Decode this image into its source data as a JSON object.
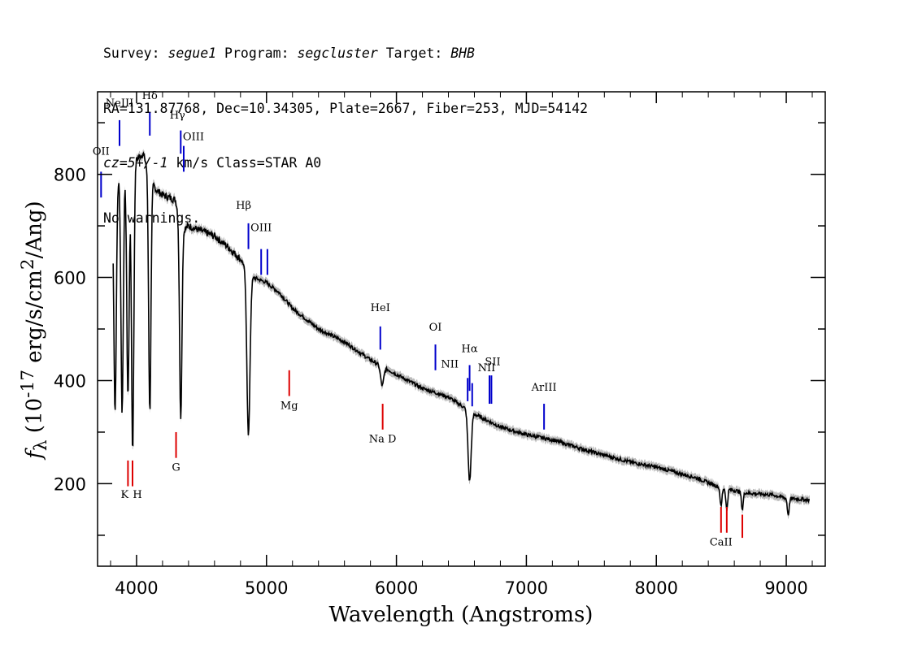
{
  "header": {
    "line1": {
      "survey_label": "Survey: ",
      "survey": "segue1",
      "program_label": " Program: ",
      "program": "segcluster",
      "target_label": " Target: ",
      "target": "BHB"
    },
    "line2": "RA=131.87768, Dec=10.34305, Plate=2667, Fiber=253, MJD=54142",
    "line3": {
      "cz": "cz=5+/-1",
      "rest": " km/s Class=STAR A0"
    },
    "line4": "No warnings."
  },
  "axis_labels": {
    "y_prefix": "f",
    "y_sub": "λ",
    "y_main": " (10",
    "y_exp": "-17",
    "y_mid": " erg/s/cm",
    "y_exp2": "2",
    "y_end": "/Ang)",
    "x": "Wavelength (Angstroms)"
  },
  "colors": {
    "spectrum": "#000000",
    "error_band": "#bbbbbb",
    "emission_line": "#0000cc",
    "absorption_line": "#dd0000",
    "axes": "#000000"
  },
  "chart_data": {
    "type": "line",
    "title": "",
    "xlabel": "Wavelength (Angstroms)",
    "ylabel": "f_λ (10^-17 erg/s/cm^2/Ang)",
    "xlim": [
      3700,
      9300
    ],
    "ylim": [
      40,
      960
    ],
    "xticks": [
      4000,
      5000,
      6000,
      7000,
      8000,
      9000
    ],
    "yticks": [
      200,
      400,
      600,
      800
    ],
    "continuum": {
      "x": [
        3820,
        3860,
        3900,
        3950,
        4000,
        4050,
        4100,
        4150,
        4200,
        4300,
        4350,
        4400,
        4500,
        4600,
        4700,
        4800,
        4900,
        5000,
        5100,
        5200,
        5400,
        5600,
        5800,
        6000,
        6200,
        6400,
        6600,
        6800,
        7000,
        7200,
        7500,
        7800,
        8000,
        8300,
        8500,
        8700,
        8900,
        9000,
        9200
      ],
      "y": [
        730,
        790,
        800,
        810,
        830,
        840,
        800,
        770,
        760,
        750,
        690,
        700,
        690,
        680,
        660,
        635,
        600,
        590,
        570,
        540,
        500,
        475,
        440,
        412,
        385,
        368,
        335,
        310,
        295,
        285,
        262,
        242,
        232,
        212,
        192,
        182,
        178,
        172,
        168
      ]
    },
    "absorption_features": [
      {
        "wavelength": 3835,
        "depth_to": 340
      },
      {
        "wavelength": 3889,
        "depth_to": 340
      },
      {
        "wavelength": 3934,
        "depth_to": 370
      },
      {
        "wavelength": 3970,
        "depth_to": 265
      },
      {
        "wavelength": 4102,
        "depth_to": 340
      },
      {
        "wavelength": 4340,
        "depth_to": 330
      },
      {
        "wavelength": 4861,
        "depth_to": 295
      },
      {
        "wavelength": 5890,
        "depth_to": 390
      },
      {
        "wavelength": 6563,
        "depth_to": 205
      },
      {
        "wavelength": 8498,
        "depth_to": 155
      },
      {
        "wavelength": 8542,
        "depth_to": 150
      },
      {
        "wavelength": 8662,
        "depth_to": 150
      },
      {
        "wavelength": 9015,
        "depth_to": 140
      }
    ],
    "emission_lines": [
      {
        "label": "OII",
        "wavelength": 3727,
        "y_top": 805,
        "y_bottom": 755,
        "text_y": 838,
        "lx": 0
      },
      {
        "label": "NeIII",
        "wavelength": 3869,
        "y_top": 905,
        "y_bottom": 855,
        "text_y": 932,
        "lx": 0
      },
      {
        "label": "Hδ",
        "wavelength": 4102,
        "y_top": 920,
        "y_bottom": 875,
        "text_y": 946,
        "lx": 0
      },
      {
        "label": "Hγ",
        "wavelength": 4340,
        "y_top": 885,
        "y_bottom": 840,
        "text_y": 908,
        "lx": -4
      },
      {
        "label": "OIII",
        "wavelength": 4363,
        "y_top": 855,
        "y_bottom": 805,
        "text_y": 866,
        "lx": 12
      },
      {
        "label": "Hβ",
        "wavelength": 4861,
        "y_top": 705,
        "y_bottom": 655,
        "text_y": 733,
        "lx": -6
      },
      {
        "label": "OIII",
        "wavelength": 4959,
        "y_top": 655,
        "y_bottom": 605,
        "text_y": 690,
        "lx": 0
      },
      {
        "label": "OIII",
        "wavelength": 5007,
        "y_top": 655,
        "y_bottom": 605,
        "text_y": null,
        "lx": 0
      },
      {
        "label": "HeI",
        "wavelength": 5876,
        "y_top": 505,
        "y_bottom": 460,
        "text_y": 535,
        "lx": 0
      },
      {
        "label": "OI",
        "wavelength": 6300,
        "y_top": 470,
        "y_bottom": 420,
        "text_y": 497,
        "lx": 0
      },
      {
        "label": "NII",
        "wavelength": 6548,
        "y_top": 405,
        "y_bottom": 360,
        "text_y": 425,
        "lx": -22
      },
      {
        "label": "Hα",
        "wavelength": 6563,
        "y_top": 430,
        "y_bottom": 380,
        "text_y": 455,
        "lx": 0
      },
      {
        "label": "NII",
        "wavelength": 6583,
        "y_top": 395,
        "y_bottom": 350,
        "text_y": null,
        "lx": 0
      },
      {
        "label": "SII",
        "wavelength": 6716,
        "y_top": 410,
        "y_bottom": 355,
        "text_y": 430,
        "lx": 4
      },
      {
        "label": "NII",
        "wavelength": 6731,
        "y_top": 410,
        "y_bottom": 355,
        "text_y": 418,
        "lx": -6
      },
      {
        "label": "ArIII",
        "wavelength": 7136,
        "y_top": 355,
        "y_bottom": 305,
        "text_y": 380,
        "lx": 0
      }
    ],
    "absorption_lines": [
      {
        "label": "K",
        "wavelength": 3934,
        "y_top": 245,
        "y_bottom": 195,
        "text_y": 172,
        "lx": -4
      },
      {
        "label": "H",
        "wavelength": 3969,
        "y_top": 245,
        "y_bottom": 195,
        "text_y": 172,
        "lx": 6
      },
      {
        "label": "G",
        "wavelength": 4304,
        "y_top": 300,
        "y_bottom": 250,
        "text_y": 225,
        "lx": 0
      },
      {
        "label": "Mg",
        "wavelength": 5175,
        "y_top": 420,
        "y_bottom": 370,
        "text_y": 345,
        "lx": 0
      },
      {
        "label": "Na D",
        "wavelength": 5894,
        "y_top": 355,
        "y_bottom": 305,
        "text_y": 280,
        "lx": 0
      },
      {
        "label": "CaII",
        "wavelength": 8498,
        "y_top": 155,
        "y_bottom": 105,
        "text_y": 80,
        "lx": 0
      },
      {
        "label": "CaII",
        "wavelength": 8542,
        "y_top": 155,
        "y_bottom": 105,
        "text_y": null,
        "lx": 0
      },
      {
        "label": "CaII",
        "wavelength": 8662,
        "y_top": 140,
        "y_bottom": 95,
        "text_y": null,
        "lx": 0
      }
    ]
  }
}
